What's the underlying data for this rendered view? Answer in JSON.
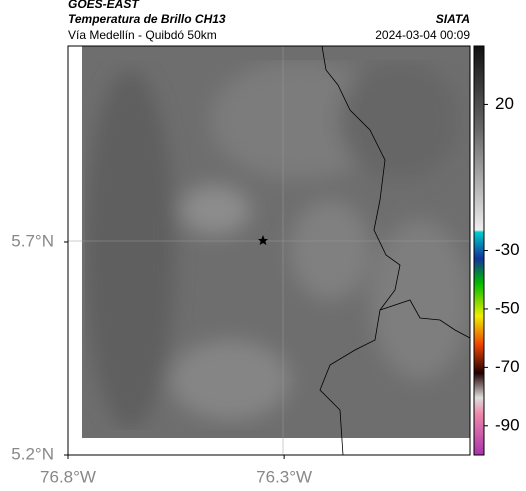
{
  "header": {
    "title": "GOES-EAST",
    "subtitle": "Temperatura de Brillo CH13",
    "region": "Vía Medellín - Quibdó 50km",
    "source": "SIATA",
    "timestamp": "2024-03-04 00:09"
  },
  "map": {
    "xlim": [
      -76.8,
      -75.87
    ],
    "ylim": [
      5.2,
      6.16
    ],
    "xticks": [
      {
        "value": -76.8,
        "label": "76.8°W"
      },
      {
        "value": -76.3,
        "label": "76.3°W"
      }
    ],
    "yticks": [
      {
        "value": 5.7,
        "label": "5.7°N"
      },
      {
        "value": 5.2,
        "label": "5.2°N"
      }
    ]
  },
  "colorbar": {
    "lim": [
      -100,
      40
    ],
    "ticks": [
      20,
      -30,
      -50,
      -70,
      -90
    ]
  }
}
